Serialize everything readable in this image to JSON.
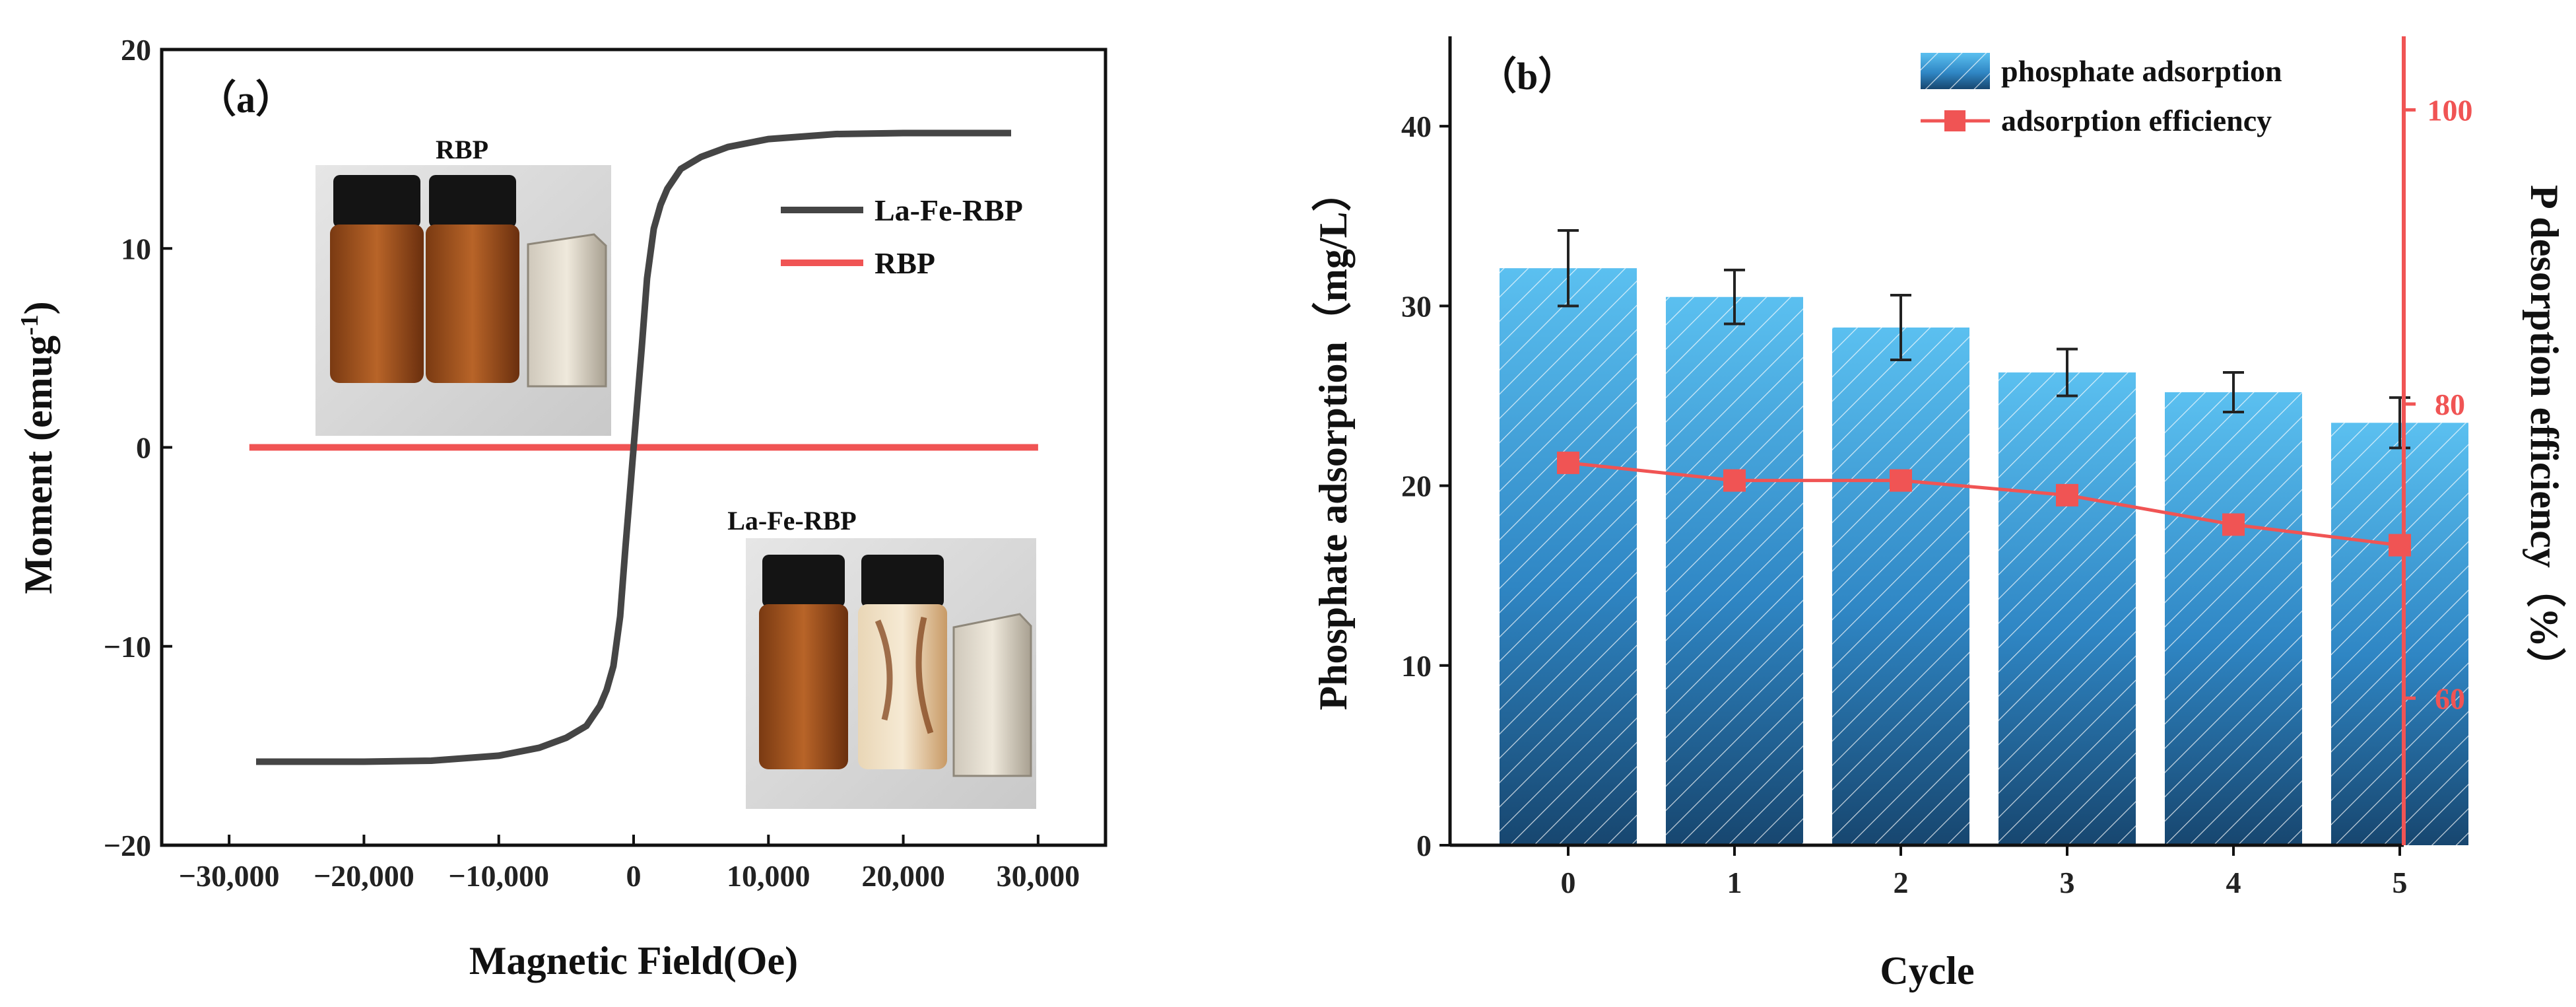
{
  "chart_data": [
    {
      "type": "line",
      "panel_label": "（a）",
      "xlabel": "Magnetic Field(Oe)",
      "ylabel": "Moment (emug",
      "ylabel_sup": "-1",
      "ylabel_close": ")",
      "xlim": [
        -35000,
        35000
      ],
      "ylim": [
        -20,
        20
      ],
      "xticks": [
        -30000,
        -20000,
        -10000,
        0,
        10000,
        20000,
        30000
      ],
      "xtick_labels": [
        "−30,000",
        "−20,000",
        "−10,000",
        "0",
        "10,000",
        "20,000",
        "30,000"
      ],
      "yticks": [
        -20,
        -10,
        0,
        10,
        20
      ],
      "ytick_labels": [
        "−20",
        "−10",
        "0",
        "10",
        "20"
      ],
      "legend_location": "right",
      "series": [
        {
          "name": "La-Fe-RBP",
          "color": "#454545",
          "x": [
            -28000,
            -20000,
            -15000,
            -10000,
            -7000,
            -5000,
            -3500,
            -2500,
            -2000,
            -1500,
            -1000,
            -600,
            -300,
            0,
            300,
            600,
            1000,
            1500,
            2000,
            2500,
            3500,
            5000,
            7000,
            10000,
            15000,
            20000,
            28000
          ],
          "y": [
            -15.8,
            -15.8,
            -15.75,
            -15.5,
            -15.1,
            -14.6,
            -14.0,
            -13.0,
            -12.2,
            -11.0,
            -8.5,
            -5.0,
            -2.5,
            0,
            2.5,
            5.0,
            8.5,
            11.0,
            12.2,
            13.0,
            14.0,
            14.6,
            15.1,
            15.5,
            15.75,
            15.8,
            15.8
          ]
        },
        {
          "name": "RBP",
          "color": "#f05454",
          "x": [
            -28500,
            30000
          ],
          "y": [
            0,
            0
          ]
        }
      ],
      "insets": [
        {
          "label": "RBP",
          "description": "photo of two vials with brown suspension and a magnet"
        },
        {
          "label": "La-Fe-RBP",
          "description": "photo of two vials, one cleared by a magnet"
        }
      ]
    },
    {
      "type": "bar",
      "panel_label": "（b）",
      "xlabel": "Cycle",
      "ylabel": "Phosphate adsorption（mg/L）",
      "y2label": "P desorption efficiency（%）",
      "categories": [
        "0",
        "1",
        "2",
        "3",
        "4",
        "5"
      ],
      "ylim": [
        0,
        45
      ],
      "y2lim": [
        50,
        105
      ],
      "yticks": [
        0,
        10,
        20,
        30,
        40
      ],
      "y2ticks": [
        60,
        80,
        100
      ],
      "series": [
        {
          "name": "phosphate adsorption",
          "kind": "bar",
          "color": "#3fa4dc",
          "values": [
            32.1,
            30.5,
            28.8,
            26.3,
            25.2,
            23.5
          ],
          "errors": [
            2.1,
            1.5,
            1.8,
            1.3,
            1.1,
            1.4
          ]
        },
        {
          "name": "adsorption efficiency",
          "kind": "line",
          "axis": "right",
          "color": "#f05454",
          "values": [
            76.0,
            74.8,
            74.8,
            73.8,
            71.8,
            70.4
          ]
        }
      ]
    }
  ]
}
